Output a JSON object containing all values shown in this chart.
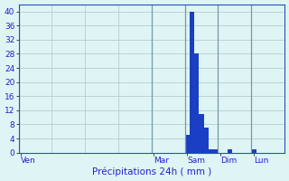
{
  "background_color": "#dff4f4",
  "bar_color": "#1a3fc4",
  "grid_color": "#aac8c8",
  "tick_label_color": "#2222cc",
  "ylim": [
    0,
    42
  ],
  "yticks": [
    0,
    4,
    8,
    12,
    16,
    20,
    24,
    28,
    32,
    36,
    40
  ],
  "bar_values": [
    0,
    0,
    0,
    0,
    0,
    0,
    0,
    0,
    0,
    0,
    0,
    0,
    0,
    0,
    0,
    0,
    0,
    0,
    0,
    0,
    0,
    0,
    0,
    0,
    0,
    0,
    0,
    0,
    0,
    0,
    0,
    0,
    0,
    0,
    0,
    5,
    40,
    28,
    11,
    7,
    1,
    1,
    0,
    0,
    1,
    0,
    0,
    0,
    0,
    1,
    0,
    0,
    0,
    0,
    0,
    0
  ],
  "n_bars": 56,
  "day_labels": [
    "Ven",
    "Mar",
    "Sam",
    "Dim",
    "Lun"
  ],
  "day_tick_positions": [
    0,
    28,
    35,
    42,
    49
  ],
  "xlabel": "Précipitations 24h ( mm )",
  "xlabel_color": "#2222cc",
  "xlabel_fontsize": 7.5,
  "tick_fontsize": 6.5,
  "ytick_fontsize": 6.5,
  "spine_color": "#2255bb"
}
